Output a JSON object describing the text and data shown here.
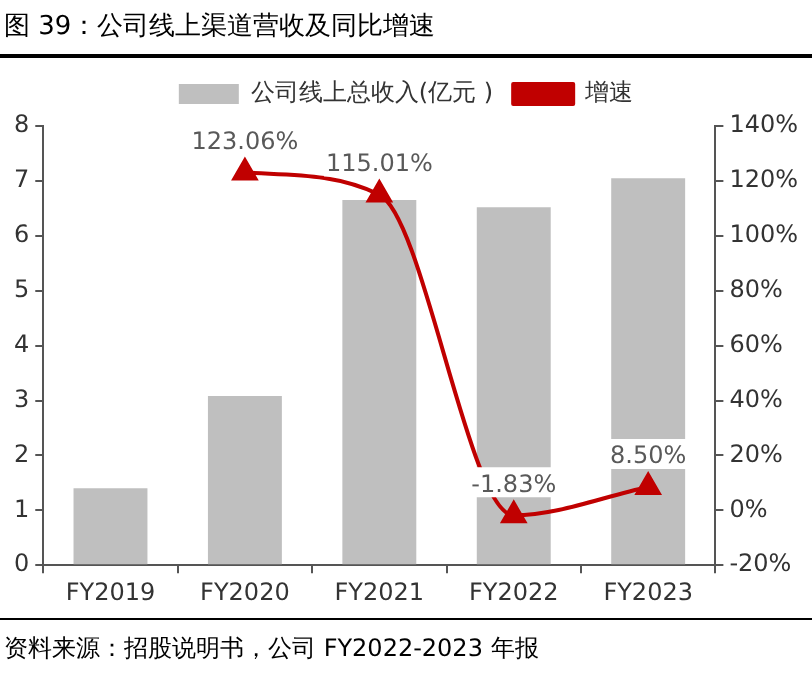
{
  "chart_data": {
    "type": "bar",
    "title": "图 39：公司线上渠道营收及同比增速",
    "categories": [
      "FY2019",
      "FY2020",
      "FY2021",
      "FY2022",
      "FY2023"
    ],
    "series": [
      {
        "name": "公司线上总收入(亿元 )",
        "color": "#bfbfbf",
        "values": [
          1.4,
          3.08,
          6.65,
          6.52,
          7.05
        ]
      },
      {
        "name": "增速",
        "type": "line",
        "axis": "y2",
        "color": "#c00000",
        "values": [
          null,
          123.06,
          115.01,
          -1.83,
          8.5
        ],
        "value_labels": [
          null,
          "123.06%",
          "115.01%",
          "-1.83%",
          "8.50%"
        ]
      }
    ],
    "ylim": [
      0,
      8
    ],
    "yticks": [
      0,
      1,
      2,
      3,
      4,
      5,
      6,
      7,
      8
    ],
    "y2lim": [
      -20,
      140
    ],
    "y2ticks": [
      {
        "value": -20,
        "label": "-20%"
      },
      {
        "value": 0,
        "label": "0%"
      },
      {
        "value": 20,
        "label": "20%"
      },
      {
        "value": 40,
        "label": "40%"
      },
      {
        "value": 60,
        "label": "60%"
      },
      {
        "value": 80,
        "label": "80%"
      },
      {
        "value": 100,
        "label": "100%"
      },
      {
        "value": 120,
        "label": "120%"
      },
      {
        "value": 140,
        "label": "140%"
      }
    ],
    "marker": "triangle",
    "legend": "top",
    "grid": false,
    "annotations": [
      "资料来源：招股说明书，公司 FY2022-2023 年报"
    ]
  }
}
